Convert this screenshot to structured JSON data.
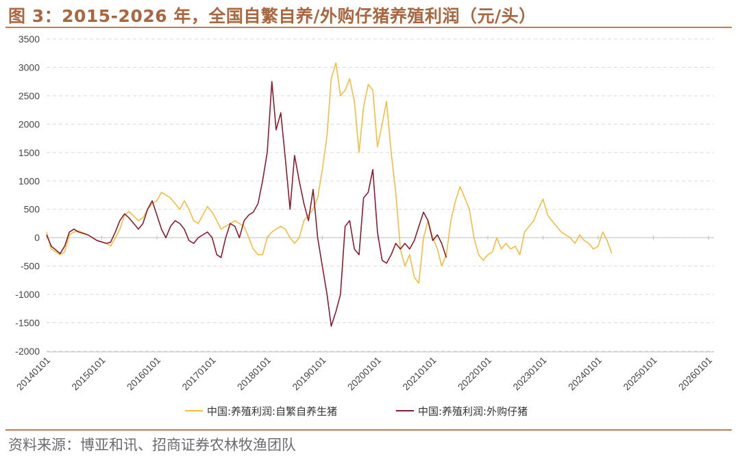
{
  "title": "图 3：2015-2026 年，全国自繁自养/外购仔猪养殖利润（元/头）",
  "source": "资料来源：博亚和讯、招商证券农林牧渔团队",
  "chart_data": {
    "type": "line",
    "title": "图 3：2015-2026 年，全国自繁自养/外购仔猪养殖利润（元/头）",
    "xlabel": "",
    "ylabel": "",
    "ylim": [
      -2000,
      3500
    ],
    "yticks": [
      "3500",
      "3000",
      "2500",
      "2000",
      "1500",
      "1000",
      "500",
      "0",
      "-500",
      "-1000",
      "-1500",
      "-2000"
    ],
    "xticks": [
      "20140101",
      "20150101",
      "20160101",
      "20170101",
      "20180101",
      "20190101",
      "20200101",
      "20210101",
      "20220101",
      "20230101",
      "20240101",
      "20250101",
      "20260101"
    ],
    "grid": true,
    "legend_position": "bottom",
    "colors": [
      "#f2bd3f",
      "#8b1a2b"
    ],
    "series": [
      {
        "name": "中国:养殖利润:自繁自养生猪",
        "points": [
          [
            "2014-01-01",
            100
          ],
          [
            "2014-02-01",
            -200
          ],
          [
            "2014-04-01",
            -300
          ],
          [
            "2014-05-01",
            -250
          ],
          [
            "2014-06-01",
            50
          ],
          [
            "2014-07-01",
            100
          ],
          [
            "2014-08-01",
            120
          ],
          [
            "2014-10-01",
            50
          ],
          [
            "2014-12-01",
            -50
          ],
          [
            "2015-02-01",
            -100
          ],
          [
            "2015-03-01",
            -150
          ],
          [
            "2015-04-01",
            0
          ],
          [
            "2015-05-01",
            150
          ],
          [
            "2015-06-01",
            400
          ],
          [
            "2015-07-01",
            460
          ],
          [
            "2015-08-01",
            380
          ],
          [
            "2015-09-01",
            300
          ],
          [
            "2015-10-01",
            350
          ],
          [
            "2015-11-01",
            500
          ],
          [
            "2015-12-01",
            600
          ],
          [
            "2016-01-01",
            650
          ],
          [
            "2016-02-01",
            800
          ],
          [
            "2016-03-01",
            750
          ],
          [
            "2016-04-01",
            700
          ],
          [
            "2016-05-01",
            600
          ],
          [
            "2016-06-01",
            500
          ],
          [
            "2016-07-01",
            650
          ],
          [
            "2016-08-01",
            500
          ],
          [
            "2016-09-01",
            300
          ],
          [
            "2016-10-01",
            250
          ],
          [
            "2016-11-01",
            400
          ],
          [
            "2016-12-01",
            550
          ],
          [
            "2017-01-01",
            450
          ],
          [
            "2017-02-01",
            300
          ],
          [
            "2017-03-01",
            150
          ],
          [
            "2017-04-01",
            200
          ],
          [
            "2017-05-01",
            250
          ],
          [
            "2017-06-01",
            300
          ],
          [
            "2017-07-01",
            250
          ],
          [
            "2017-08-01",
            200
          ],
          [
            "2017-09-01",
            0
          ],
          [
            "2017-10-01",
            -200
          ],
          [
            "2017-11-01",
            -300
          ],
          [
            "2017-12-01",
            -300
          ],
          [
            "2018-01-01",
            0
          ],
          [
            "2018-02-01",
            100
          ],
          [
            "2018-03-01",
            150
          ],
          [
            "2018-04-01",
            200
          ],
          [
            "2018-05-01",
            150
          ],
          [
            "2018-06-01",
            0
          ],
          [
            "2018-07-01",
            -100
          ],
          [
            "2018-08-01",
            0
          ],
          [
            "2018-09-01",
            300
          ],
          [
            "2018-10-01",
            400
          ],
          [
            "2018-11-01",
            500
          ],
          [
            "2018-12-01",
            700
          ],
          [
            "2019-01-01",
            1200
          ],
          [
            "2019-02-01",
            1800
          ],
          [
            "2019-03-01",
            2800
          ],
          [
            "2019-04-01",
            3080
          ],
          [
            "2019-05-01",
            2500
          ],
          [
            "2019-06-01",
            2600
          ],
          [
            "2019-07-01",
            2800
          ],
          [
            "2019-08-01",
            2400
          ],
          [
            "2019-09-01",
            1500
          ],
          [
            "2019-10-01",
            2300
          ],
          [
            "2019-11-01",
            2700
          ],
          [
            "2019-12-01",
            2600
          ],
          [
            "2020-01-01",
            1600
          ],
          [
            "2020-02-01",
            2000
          ],
          [
            "2020-03-01",
            2400
          ],
          [
            "2020-04-01",
            1500
          ],
          [
            "2020-05-01",
            800
          ],
          [
            "2020-06-01",
            -200
          ],
          [
            "2020-07-01",
            -500
          ],
          [
            "2020-08-01",
            -300
          ],
          [
            "2020-09-01",
            -700
          ],
          [
            "2020-10-01",
            -800
          ],
          [
            "2020-11-01",
            0
          ],
          [
            "2020-12-01",
            300
          ],
          [
            "2021-01-01",
            0
          ],
          [
            "2021-02-01",
            -200
          ],
          [
            "2021-03-01",
            -500
          ],
          [
            "2021-04-01",
            -300
          ],
          [
            "2021-05-01",
            300
          ],
          [
            "2021-06-01",
            650
          ],
          [
            "2021-07-01",
            900
          ],
          [
            "2021-08-01",
            700
          ],
          [
            "2021-09-01",
            500
          ],
          [
            "2021-10-01",
            0
          ],
          [
            "2021-11-01",
            -300
          ],
          [
            "2021-12-01",
            -400
          ],
          [
            "2022-01-01",
            -300
          ],
          [
            "2022-02-01",
            -250
          ],
          [
            "2022-03-01",
            0
          ],
          [
            "2022-04-01",
            -200
          ],
          [
            "2022-05-01",
            -100
          ],
          [
            "2022-06-01",
            -200
          ],
          [
            "2022-07-01",
            -150
          ],
          [
            "2022-08-01",
            -300
          ],
          [
            "2022-09-01",
            100
          ],
          [
            "2022-10-01",
            200
          ],
          [
            "2022-11-01",
            300
          ],
          [
            "2022-12-01",
            500
          ],
          [
            "2023-01-01",
            680
          ],
          [
            "2023-02-01",
            400
          ],
          [
            "2023-03-01",
            300
          ],
          [
            "2023-04-01",
            200
          ],
          [
            "2023-05-01",
            100
          ],
          [
            "2023-06-01",
            50
          ],
          [
            "2023-07-01",
            0
          ],
          [
            "2023-08-01",
            -100
          ],
          [
            "2023-09-01",
            50
          ],
          [
            "2023-10-01",
            -50
          ],
          [
            "2023-11-01",
            -100
          ],
          [
            "2023-12-01",
            -200
          ],
          [
            "2024-01-01",
            -150
          ],
          [
            "2024-02-01",
            100
          ],
          [
            "2024-03-01",
            -50
          ],
          [
            "2024-04-01",
            -280
          ]
        ]
      },
      {
        "name": "中国:养殖利润:外购仔猪",
        "points": [
          [
            "2014-01-01",
            50
          ],
          [
            "2014-02-01",
            -150
          ],
          [
            "2014-04-01",
            -280
          ],
          [
            "2014-05-01",
            -150
          ],
          [
            "2014-06-01",
            100
          ],
          [
            "2014-07-01",
            150
          ],
          [
            "2014-08-01",
            100
          ],
          [
            "2014-10-01",
            50
          ],
          [
            "2014-12-01",
            -50
          ],
          [
            "2015-02-01",
            -100
          ],
          [
            "2015-03-01",
            -80
          ],
          [
            "2015-04-01",
            100
          ],
          [
            "2015-05-01",
            300
          ],
          [
            "2015-06-01",
            420
          ],
          [
            "2015-07-01",
            350
          ],
          [
            "2015-08-01",
            250
          ],
          [
            "2015-09-01",
            150
          ],
          [
            "2015-10-01",
            250
          ],
          [
            "2015-11-01",
            500
          ],
          [
            "2015-12-01",
            650
          ],
          [
            "2016-01-01",
            400
          ],
          [
            "2016-02-01",
            150
          ],
          [
            "2016-03-01",
            0
          ],
          [
            "2016-04-01",
            200
          ],
          [
            "2016-05-01",
            300
          ],
          [
            "2016-06-01",
            250
          ],
          [
            "2016-07-01",
            150
          ],
          [
            "2016-08-01",
            -50
          ],
          [
            "2016-09-01",
            -100
          ],
          [
            "2016-10-01",
            0
          ],
          [
            "2016-11-01",
            50
          ],
          [
            "2016-12-01",
            100
          ],
          [
            "2017-01-01",
            0
          ],
          [
            "2017-02-01",
            -300
          ],
          [
            "2017-03-01",
            -350
          ],
          [
            "2017-04-01",
            0
          ],
          [
            "2017-05-01",
            250
          ],
          [
            "2017-06-01",
            200
          ],
          [
            "2017-07-01",
            0
          ],
          [
            "2017-08-01",
            300
          ],
          [
            "2017-09-01",
            400
          ],
          [
            "2017-10-01",
            450
          ],
          [
            "2017-11-01",
            600
          ],
          [
            "2017-12-01",
            1000
          ],
          [
            "2018-01-01",
            1500
          ],
          [
            "2018-02-01",
            2750
          ],
          [
            "2018-03-01",
            1900
          ],
          [
            "2018-04-01",
            2200
          ],
          [
            "2018-05-01",
            1400
          ],
          [
            "2018-06-01",
            500
          ],
          [
            "2018-07-01",
            1450
          ],
          [
            "2018-08-01",
            1000
          ],
          [
            "2018-09-01",
            600
          ],
          [
            "2018-10-01",
            300
          ],
          [
            "2018-11-01",
            850
          ],
          [
            "2018-12-01",
            0
          ],
          [
            "2019-01-01",
            -500
          ],
          [
            "2019-02-01",
            -1000
          ],
          [
            "2019-03-01",
            -1560
          ],
          [
            "2019-04-01",
            -1300
          ],
          [
            "2019-05-01",
            -1000
          ],
          [
            "2019-06-01",
            200
          ],
          [
            "2019-07-01",
            300
          ],
          [
            "2019-08-01",
            -200
          ],
          [
            "2019-09-01",
            -300
          ],
          [
            "2019-10-01",
            700
          ],
          [
            "2019-11-01",
            800
          ],
          [
            "2019-12-01",
            1200
          ],
          [
            "2020-01-01",
            100
          ],
          [
            "2020-02-01",
            -400
          ],
          [
            "2020-03-01",
            -450
          ],
          [
            "2020-04-01",
            -300
          ],
          [
            "2020-05-01",
            -100
          ],
          [
            "2020-06-01",
            -200
          ],
          [
            "2020-07-01",
            -100
          ],
          [
            "2020-08-01",
            -200
          ],
          [
            "2020-09-01",
            -50
          ],
          [
            "2020-10-01",
            200
          ],
          [
            "2020-11-01",
            450
          ],
          [
            "2020-12-01",
            300
          ],
          [
            "2021-01-01",
            -50
          ],
          [
            "2021-02-01",
            50
          ],
          [
            "2021-03-01",
            -100
          ],
          [
            "2021-04-01",
            -350
          ]
        ]
      }
    ]
  }
}
